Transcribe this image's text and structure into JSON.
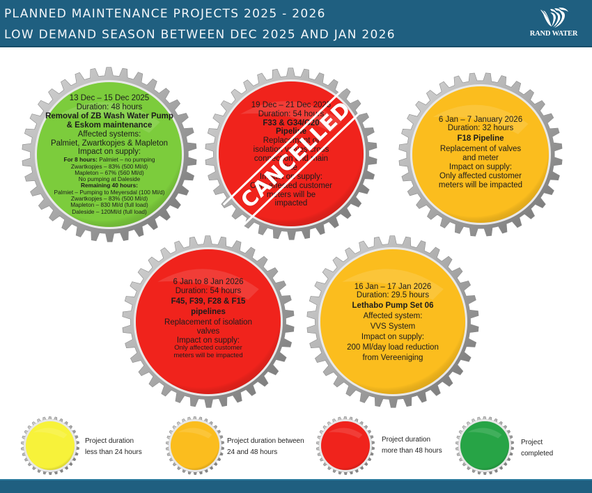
{
  "header": {
    "title_line1": "PLANNED MAINTENANCE PROJECTS 2025 - 2026",
    "title_line2": "LOW DEMAND SEASON BETWEEN DEC 2025 AND JAN 2026",
    "logo_icon": "rand-water-wave-icon",
    "logo_text": "RAND WATER",
    "background_color": "#1f5f80"
  },
  "colors": {
    "green": "#7ccc3c",
    "red": "#f0231c",
    "amber": "#fbbd1e",
    "yellow": "#f7f23a",
    "done_green": "#27a446",
    "gear_metal": "#b8b8b8"
  },
  "projects": [
    {
      "dates": "13 Dec – 15 Dec 2025",
      "duration": "Duration: 48 hours",
      "title_line1": "Removal of ZB Wash Water Pump",
      "title_line2": "& Eskom maintenance",
      "affected_label": "Affected systems:",
      "affected_value": "Palmiet, Zwartkopjes & Mapleton",
      "impact_label": "Impact on supply:",
      "impact_details": {
        "for8_label": "For 8 hours:",
        "for8_value": " Palmiet – no pumping",
        "line2": "Zwartkopjes – 83% (500 Ml/d)",
        "line3": "Mapleton – 67% (560 Ml/d)",
        "line4": "No pumping at Daleside",
        "remaining_label": "Remaining 40 hours:",
        "line6": "Palmiet – Pumping to Meyersdal (100 Ml/d)",
        "line7": "Zwartkopjes – 83% (500 Ml/d)",
        "line8": "Mapleton – 830 Ml/d (full load)",
        "line9": "Daleside – 120Ml/d (full load)"
      },
      "status_color": "green",
      "status": "active"
    },
    {
      "dates": "19 Dec – 21 Dec 2025",
      "duration": "Duration: 54 hours",
      "title_line1": "F33 & G34/G20",
      "title_line2": "Pipeline",
      "desc_line1": "Replacement of",
      "desc_line2": "isolation valves cross",
      "desc_line3": "connection and main",
      "desc_line4": "line",
      "impact_label": "Impact on supply:",
      "impact_line1": "Only affected customer",
      "impact_line2": "meters will be",
      "impact_line3": "impacted",
      "status_color": "red",
      "stamp": "CANCELLED"
    },
    {
      "dates": "6 Jan – 7 January 2026",
      "duration": "Duration: 32 hours",
      "title_line1": "F18 Pipeline",
      "desc_line1": "Replacement of valves",
      "desc_line2": "and meter",
      "impact_label": "Impact on supply:",
      "impact_line1": "Only affected customer",
      "impact_line2": "meters will be impacted",
      "status_color": "amber"
    },
    {
      "dates": "6 Jan to 8 Jan 2026",
      "duration": "Duration: 54 hours",
      "title_line1": "F45, F39, F28 & F15",
      "title_line2": "pipelines",
      "desc_line1": "Replacement of isolation",
      "desc_line2": "valves",
      "impact_label": "Impact on supply:",
      "impact_line1": "Only affected customer",
      "impact_line2": "meters will be impacted",
      "status_color": "red"
    },
    {
      "dates": "16 Jan – 17 Jan 2026",
      "duration": "Duration: 29.5 hours",
      "title_line1": "Lethabo Pump Set 06",
      "affected_label": "Affected system:",
      "affected_value": "VVS System",
      "impact_label": "Impact on supply:",
      "impact_line1": "200 Ml/day load reduction",
      "impact_line2": "from Vereeniging",
      "status_color": "amber"
    }
  ],
  "legend": [
    {
      "color": "yellow",
      "line1": "Project duration",
      "line2": "less than 24 hours"
    },
    {
      "color": "amber",
      "line1": "Project duration between",
      "line2": "24 and 48 hours"
    },
    {
      "color": "red",
      "line1": "Project duration",
      "line2": "more than 48 hours"
    },
    {
      "color": "done_green",
      "line1": "Project",
      "line2": "completed"
    }
  ]
}
